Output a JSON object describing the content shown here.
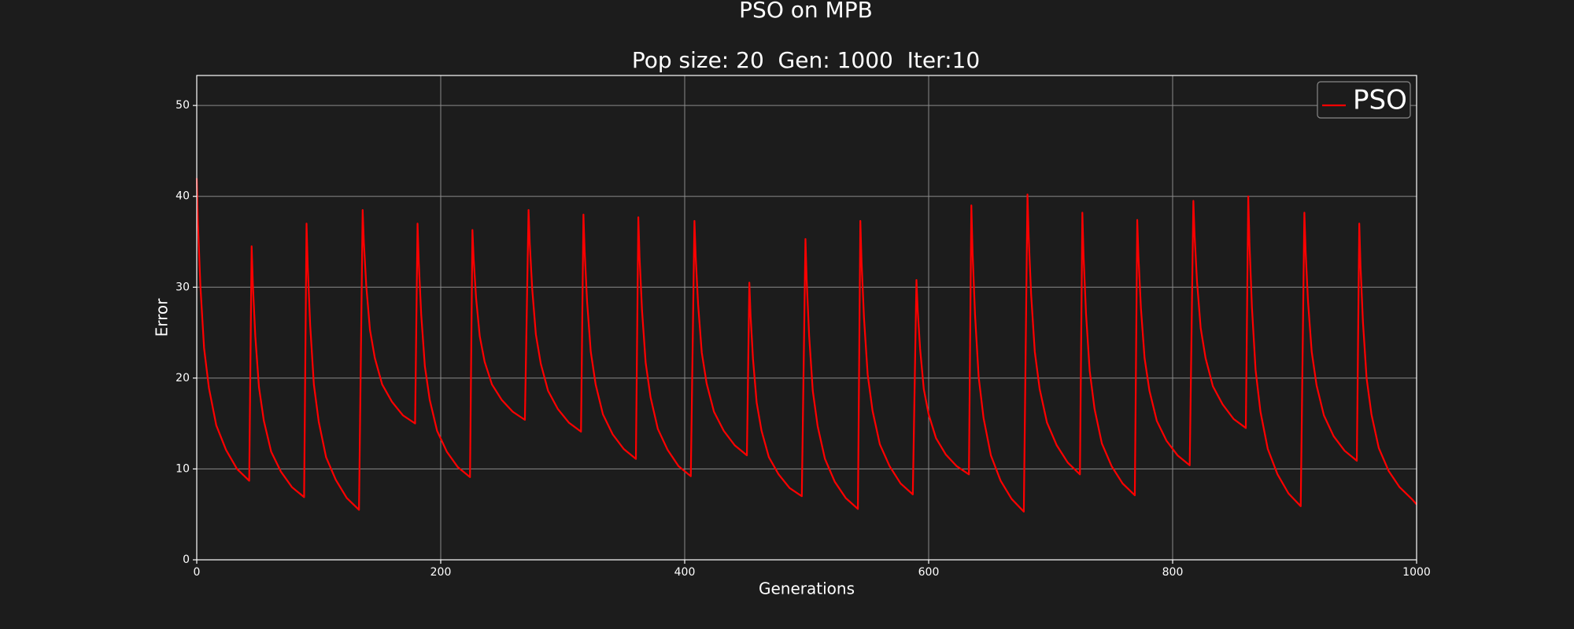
{
  "chart_data": {
    "type": "line",
    "title": "PSO on MPB",
    "subtitle": "Pop size: 20  Gen: 1000  Iter:10",
    "x_label": "Generations",
    "y_label": "Error",
    "xlim": [
      0,
      1000
    ],
    "ylim": [
      0,
      53.3
    ],
    "xticks": [
      0,
      200,
      400,
      600,
      800,
      1000
    ],
    "yticks": [
      0,
      10,
      20,
      30,
      40,
      50
    ],
    "grid": true,
    "legend": "upper right",
    "x": [
      0,
      1,
      3,
      6,
      10,
      16,
      24,
      33,
      43,
      45,
      46,
      48,
      51,
      55,
      61,
      69,
      78,
      88,
      90,
      91,
      93,
      96,
      100,
      106,
      114,
      123,
      133,
      136,
      137,
      139,
      142,
      146,
      152,
      160,
      169,
      179,
      181,
      182,
      184,
      187,
      191,
      197,
      205,
      214,
      224,
      226,
      227,
      229,
      232,
      236,
      242,
      250,
      259,
      269,
      272,
      273,
      275,
      278,
      282,
      288,
      296,
      305,
      315,
      317,
      318,
      320,
      323,
      327,
      333,
      341,
      350,
      360,
      362,
      363,
      365,
      368,
      372,
      378,
      386,
      395,
      405,
      408,
      409,
      411,
      414,
      418,
      424,
      432,
      441,
      451,
      453,
      454,
      456,
      459,
      463,
      469,
      477,
      486,
      496,
      499,
      500,
      502,
      505,
      509,
      515,
      523,
      532,
      542,
      544,
      545,
      547,
      550,
      554,
      560,
      568,
      577,
      587,
      590,
      591,
      593,
      596,
      600,
      606,
      614,
      623,
      633,
      635,
      636,
      638,
      641,
      645,
      651,
      659,
      668,
      678,
      681,
      682,
      684,
      687,
      691,
      697,
      705,
      714,
      724,
      726,
      727,
      729,
      732,
      736,
      742,
      750,
      759,
      769,
      771,
      772,
      774,
      777,
      781,
      787,
      795,
      804,
      814,
      817,
      818,
      820,
      823,
      827,
      833,
      841,
      850,
      860,
      862,
      863,
      865,
      868,
      872,
      878,
      886,
      895,
      905,
      908,
      909,
      911,
      914,
      918,
      924,
      932,
      941,
      951,
      953,
      954,
      956,
      959,
      963,
      969,
      977,
      986,
      996,
      1000
    ],
    "series": [
      {
        "name": "PSO",
        "color": "#ff0000",
        "values": [
          42,
          36.9,
          30.1,
          23.3,
          18.9,
          14.8,
          12.1,
          10.0,
          8.7,
          34.5,
          30.3,
          24.6,
          19.0,
          15.3,
          11.9,
          9.7,
          8.0,
          6.9,
          37,
          32.2,
          25.8,
          19.3,
          15.2,
          11.3,
          8.8,
          6.8,
          5.5,
          38.5,
          34.9,
          30.1,
          25.3,
          22.2,
          19.3,
          17.4,
          15.9,
          15.0,
          37,
          32.7,
          27.0,
          21.3,
          17.6,
          14.2,
          11.9,
          10.2,
          9.1,
          36.3,
          33.1,
          28.8,
          24.6,
          21.8,
          19.3,
          17.6,
          16.3,
          15.4,
          38.5,
          34.8,
          29.8,
          24.8,
          21.6,
          18.6,
          16.6,
          15.1,
          14.1,
          38,
          33.9,
          28.4,
          22.9,
          19.3,
          16.0,
          13.8,
          12.2,
          11.1,
          37.7,
          33.3,
          27.5,
          21.7,
          17.9,
          14.4,
          12.1,
          10.3,
          9.2,
          37.3,
          33.4,
          28.1,
          22.8,
          19.4,
          16.3,
          14.2,
          12.6,
          11.5,
          30.5,
          26.9,
          22.1,
          17.3,
          14.2,
          11.3,
          9.4,
          7.9,
          7.0,
          35.3,
          30.8,
          24.7,
          18.6,
          14.7,
          11.1,
          8.6,
          6.8,
          5.6,
          37.3,
          32.7,
          26.6,
          20.4,
          16.4,
          12.7,
          10.3,
          8.4,
          7.2,
          30.8,
          27.5,
          23.2,
          18.8,
          16.0,
          13.4,
          11.6,
          10.3,
          9.4,
          39,
          33.8,
          27.0,
          20.1,
          15.6,
          11.5,
          8.7,
          6.7,
          5.3,
          40.2,
          35.5,
          29.2,
          22.9,
          18.8,
          15.1,
          12.6,
          10.7,
          9.4,
          38.2,
          33.4,
          27.1,
          20.8,
          16.6,
          12.8,
          10.3,
          8.4,
          7.1,
          37.4,
          33.3,
          27.7,
          22.2,
          18.6,
          15.3,
          13.1,
          11.5,
          10.4,
          39.5,
          35.7,
          30.6,
          25.5,
          22.2,
          19.1,
          17.1,
          15.5,
          14.5,
          40,
          34.8,
          27.8,
          20.9,
          16.3,
          12.2,
          9.4,
          7.3,
          5.9,
          38.2,
          34.0,
          28.4,
          22.9,
          19.2,
          15.9,
          13.6,
          12.0,
          10.9,
          37,
          32.4,
          26.2,
          20.0,
          16.0,
          12.3,
          9.8,
          8.0,
          6.7,
          6.1
        ]
      }
    ]
  }
}
